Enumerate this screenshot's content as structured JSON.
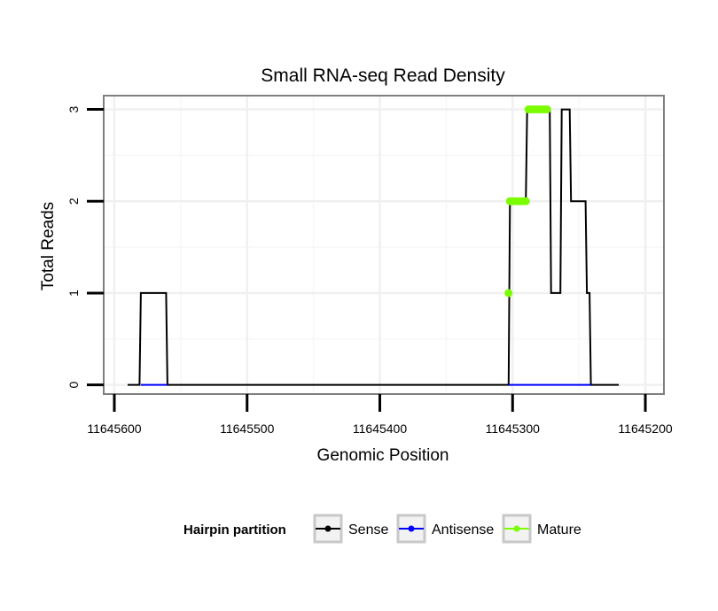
{
  "chart_data": {
    "type": "line",
    "title": "Small RNA-seq Read Density",
    "xlabel": "Genomic Position",
    "ylabel": "Total Reads",
    "x_reversed": true,
    "xlim": [
      11645608,
      11645186
    ],
    "ylim": [
      -0.1,
      3.15
    ],
    "x_ticks": [
      11645600,
      11645500,
      11645400,
      11645300,
      11645200
    ],
    "x_tick_labels": [
      "11645600",
      "11645500",
      "11645400",
      "11645300",
      "11645200"
    ],
    "y_ticks": [
      0,
      1,
      2,
      3
    ],
    "y_tick_labels": [
      "0",
      "1",
      "2",
      "3"
    ],
    "grid": true,
    "legend": {
      "title": "Hairpin partition",
      "position": "bottom",
      "entries": [
        "Sense",
        "Antisense",
        "Mature"
      ]
    },
    "series": [
      {
        "name": "Sense",
        "color": "#000000",
        "x": [
          11645590,
          11645581,
          11645580,
          11645561,
          11645560,
          11645303,
          11645302,
          11645300,
          11645290,
          11645289,
          11645272,
          11645271,
          11645264,
          11645263,
          11645257,
          11645256,
          11645245,
          11645244,
          11645242,
          11645241,
          11645240,
          11645220
        ],
        "y": [
          0,
          0,
          1,
          1,
          0,
          0,
          2,
          2,
          2,
          3,
          3,
          1,
          1,
          3,
          3,
          2,
          2,
          1,
          1,
          0,
          0,
          0
        ]
      },
      {
        "name": "Antisense",
        "color": "#0000ff",
        "x": [
          11645580,
          11645560,
          11645303,
          11645241
        ],
        "y": [
          0,
          0,
          0,
          0
        ]
      },
      {
        "name": "Mature",
        "color": "#7cfc00",
        "x": [
          11645303,
          11645302,
          11645300,
          11645298,
          11645296,
          11645294,
          11645292,
          11645290,
          11645288,
          11645286,
          11645284,
          11645282,
          11645280,
          11645278,
          11645276,
          11645274
        ],
        "y": [
          1,
          2,
          2,
          2,
          2,
          2,
          2,
          2,
          3,
          3,
          3,
          3,
          3,
          3,
          3,
          3
        ]
      }
    ]
  }
}
